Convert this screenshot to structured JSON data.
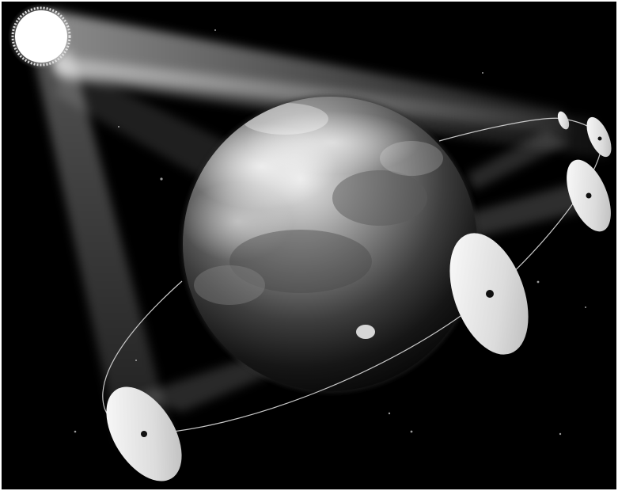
{
  "scene": {
    "background": "#000000",
    "frame": "#ffffff",
    "sun": {
      "color": "#ffffff"
    },
    "planet": {
      "name": "earth-icon"
    },
    "satellite_count": 6,
    "mirror_count": 5
  }
}
